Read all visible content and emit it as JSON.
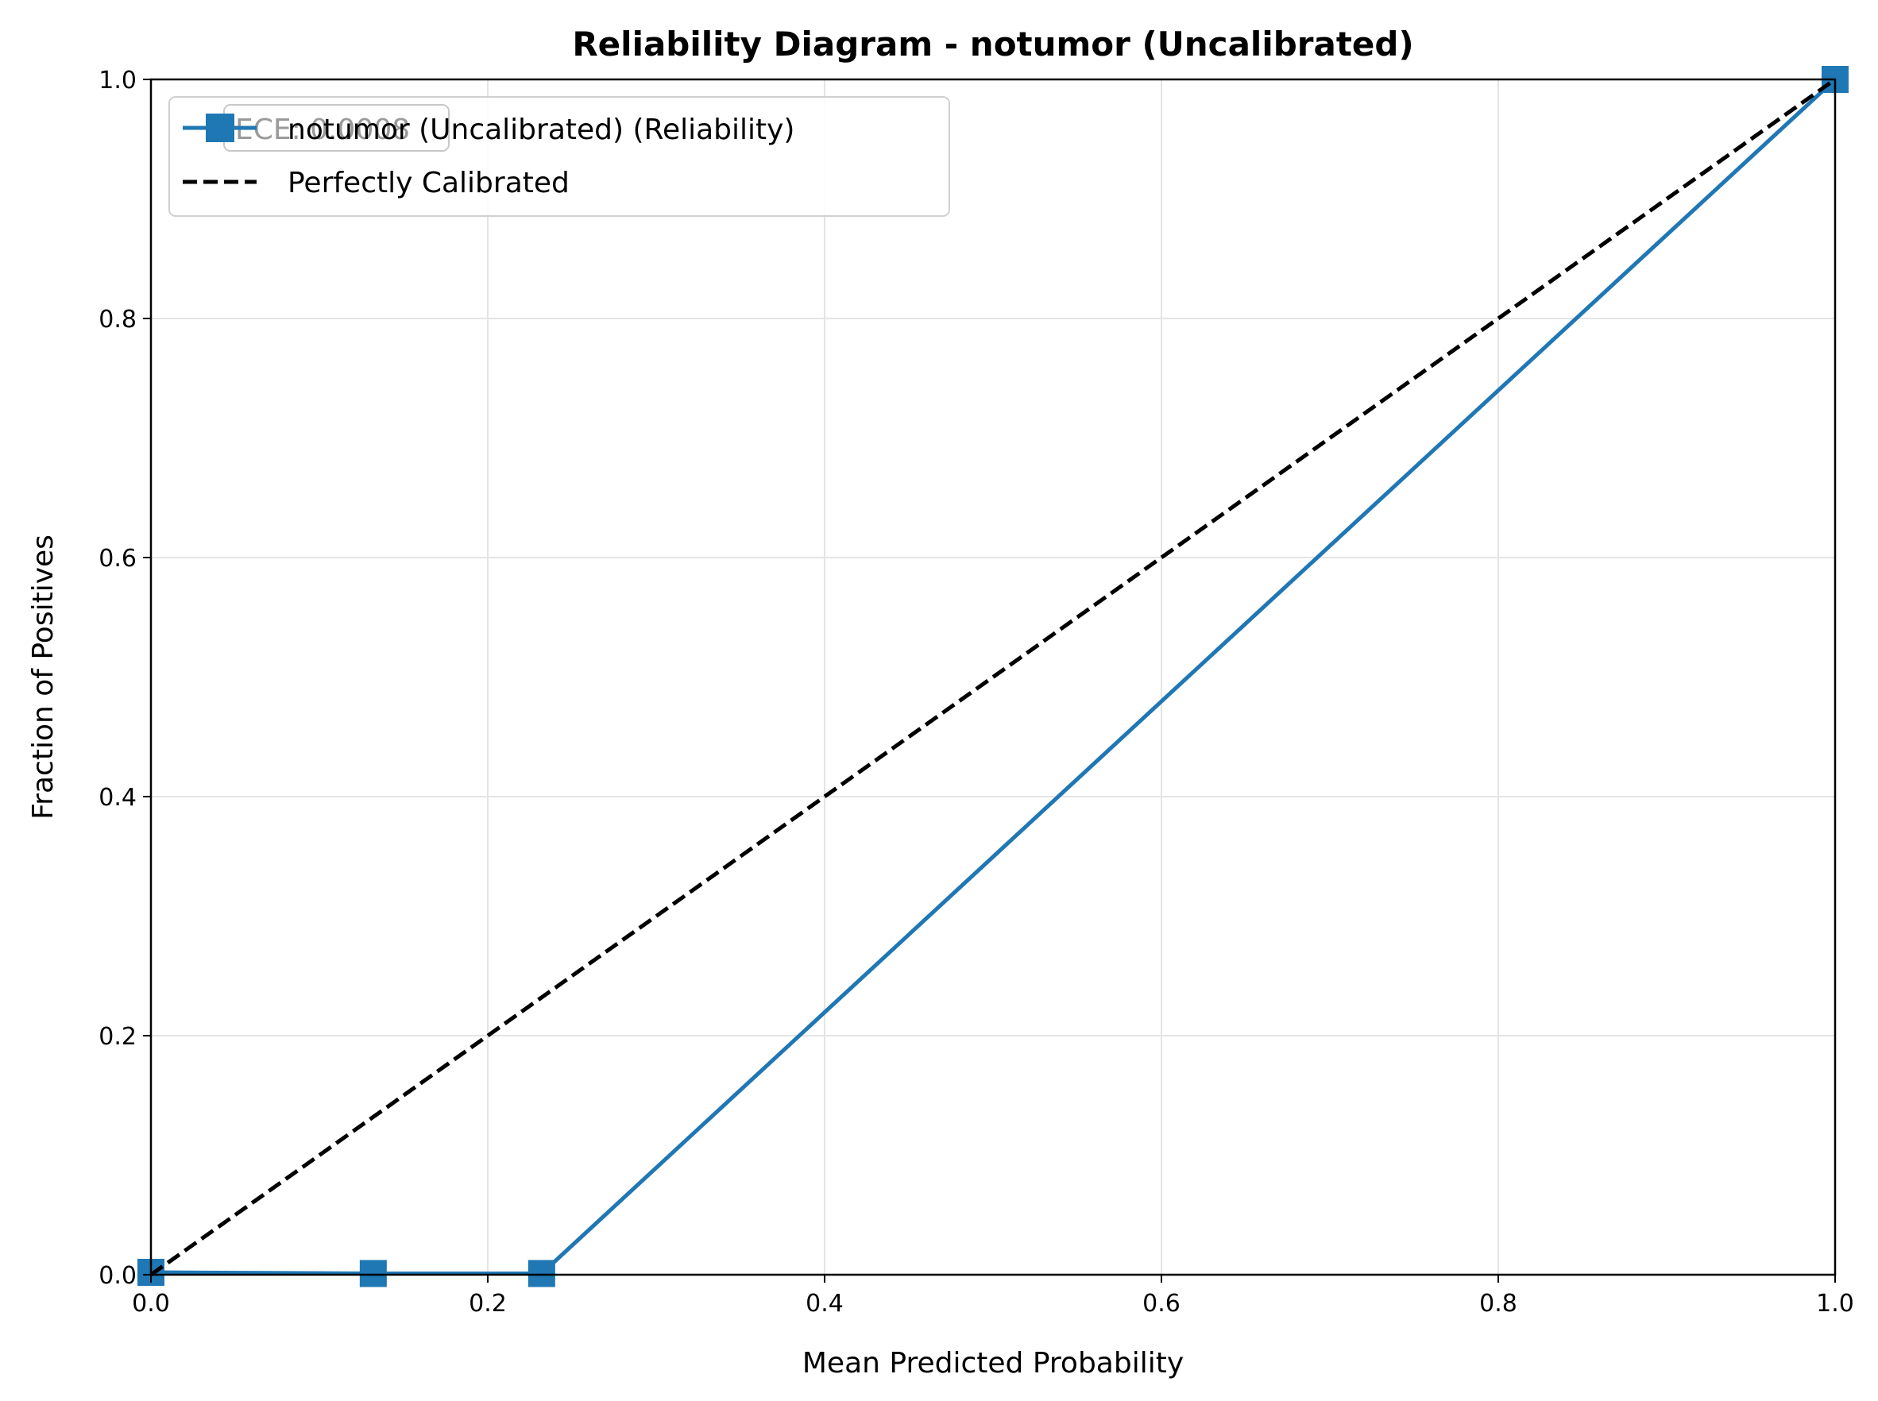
{
  "chart_data": {
    "type": "line",
    "title": "Reliability Diagram - notumor (Uncalibrated)",
    "xlabel": "Mean Predicted Probability",
    "ylabel": "Fraction of Positives",
    "xlim": [
      0,
      1
    ],
    "ylim": [
      0,
      1
    ],
    "x_ticks": [
      "0.0",
      "0.2",
      "0.4",
      "0.6",
      "0.8",
      "1.0"
    ],
    "y_ticks": [
      "0.0",
      "0.2",
      "0.4",
      "0.6",
      "0.8",
      "1.0"
    ],
    "grid": true,
    "legend_position": "upper-left",
    "annotation": "ECE: 0.0008",
    "series": [
      {
        "name": "notumor (Uncalibrated) (Reliability)",
        "color": "#1f77b4",
        "style": "solid",
        "marker": "square",
        "x": [
          0.0,
          0.132,
          0.232,
          1.0
        ],
        "y": [
          0.002,
          0.001,
          0.001,
          1.0
        ]
      },
      {
        "name": "Perfectly Calibrated",
        "color": "#000000",
        "style": "dashed",
        "marker": "none",
        "x": [
          0,
          1
        ],
        "y": [
          0,
          1
        ]
      }
    ]
  }
}
